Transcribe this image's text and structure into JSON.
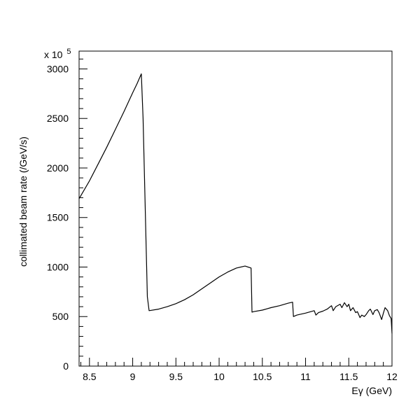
{
  "chart_data": {
    "type": "line",
    "title": "",
    "xlabel": "Eγ (GeV)",
    "ylabel": "collimated beam rate (/GeV/s)",
    "y_multiplier_label": "x 10",
    "y_multiplier_exponent": "5",
    "xlim": [
      8.38,
      12.0
    ],
    "ylim": [
      0,
      3180
    ],
    "x_ticks": [
      8.5,
      9,
      9.5,
      10,
      10.5,
      11,
      11.5,
      12
    ],
    "x_tick_labels": [
      "8.5",
      "9",
      "9.5",
      "10",
      "10.5",
      "11",
      "11.5",
      "12"
    ],
    "y_ticks": [
      0,
      500,
      1000,
      1500,
      2000,
      2500,
      3000
    ],
    "y_tick_labels": [
      "0",
      "500",
      "1000",
      "1500",
      "2000",
      "2500",
      "3000"
    ],
    "grid": false,
    "legend": "none",
    "series": [
      {
        "x": [
          8.38,
          8.5,
          8.6,
          8.7,
          8.8,
          8.9,
          9.0,
          9.05,
          9.1,
          9.12,
          9.17,
          9.19,
          9.3,
          9.4,
          9.5,
          9.6,
          9.7,
          9.8,
          9.9,
          10.0,
          10.1,
          10.2,
          10.3,
          10.37,
          10.38,
          10.4,
          10.5,
          10.6,
          10.7,
          10.8,
          10.85,
          10.86,
          10.9,
          11.0,
          11.1,
          11.12,
          11.15,
          11.2,
          11.25,
          11.3,
          11.32,
          11.35,
          11.4,
          11.42,
          11.45,
          11.48,
          11.5,
          11.52,
          11.55,
          11.58,
          11.6,
          11.63,
          11.65,
          11.68,
          11.7,
          11.73,
          11.75,
          11.78,
          11.8,
          11.83,
          11.85,
          11.88,
          11.9,
          11.92,
          11.95,
          11.97,
          11.99,
          12.0
        ],
        "y": [
          1690,
          1870,
          2040,
          2210,
          2390,
          2570,
          2760,
          2850,
          2950,
          2500,
          700,
          560,
          575,
          600,
          630,
          670,
          720,
          780,
          840,
          900,
          950,
          990,
          1010,
          990,
          545,
          550,
          565,
          590,
          610,
          635,
          645,
          500,
          515,
          535,
          560,
          515,
          540,
          555,
          575,
          610,
          560,
          600,
          625,
          590,
          640,
          600,
          625,
          560,
          590,
          540,
          550,
          490,
          515,
          500,
          520,
          560,
          575,
          520,
          560,
          570,
          540,
          470,
          535,
          590,
          560,
          510,
          480,
          330
        ]
      }
    ]
  }
}
